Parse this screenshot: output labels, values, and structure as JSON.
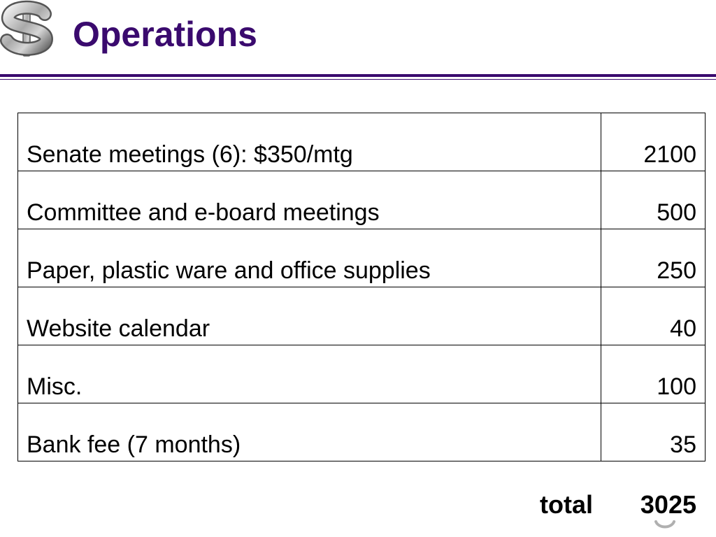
{
  "slide": {
    "title": "Operations",
    "logo_icon": "dollar-sign-icon",
    "accent_color": "#3a0a6e"
  },
  "table": {
    "rows": [
      {
        "description": "Senate meetings (6):  $350/mtg",
        "amount": "2100"
      },
      {
        "description": "Committee and e-board meetings",
        "amount": "500"
      },
      {
        "description": "Paper, plastic ware and office supplies",
        "amount": "250"
      },
      {
        "description": "Website calendar",
        "amount": "40"
      },
      {
        "description": "Misc.",
        "amount": "100"
      },
      {
        "description": "Bank fee (7 months)",
        "amount": "35"
      }
    ]
  },
  "total": {
    "label": "total",
    "value": "3025"
  }
}
